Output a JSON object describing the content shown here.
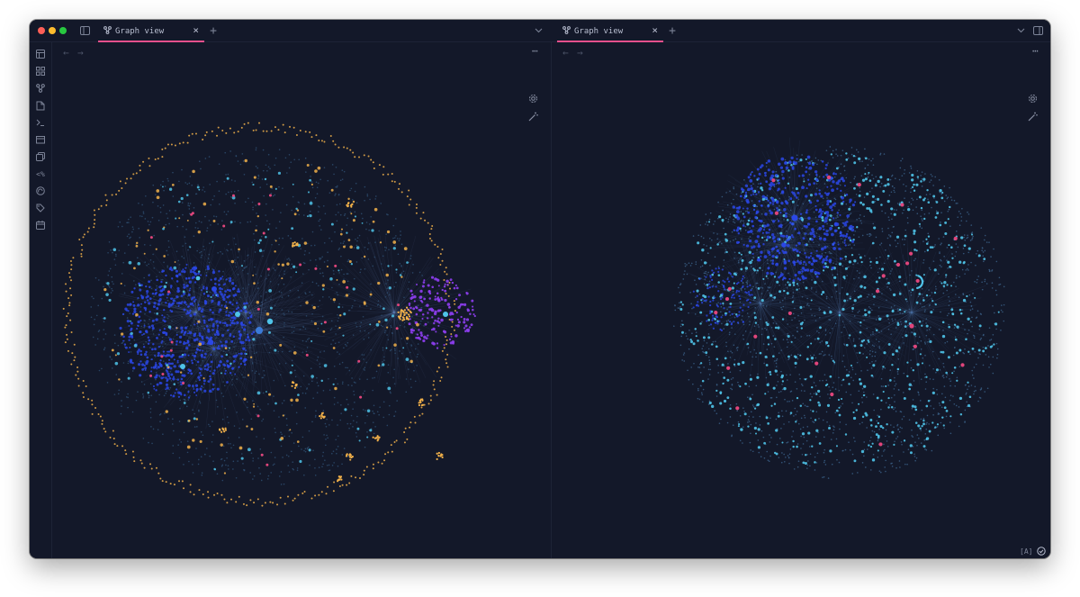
{
  "window": {
    "left_pane": {
      "tab": {
        "label": "Graph view",
        "active": true
      },
      "new_tab_symbol": "+",
      "close_symbol": "×",
      "tab_list_icon": "chevron-down-icon",
      "nav": {
        "back": "←",
        "forward": "→"
      },
      "more_options": "⋯",
      "graph_controls": [
        "gear-icon",
        "magic-wand-icon"
      ]
    },
    "right_pane": {
      "tab": {
        "label": "Graph view",
        "active": true
      },
      "new_tab_symbol": "+",
      "close_symbol": "×",
      "tab_list_icon": "chevron-down-icon",
      "nav": {
        "back": "←",
        "forward": "→"
      },
      "more_options": "⋯",
      "graph_controls": [
        "gear-icon",
        "magic-wand-icon"
      ]
    },
    "sidebar_icons": [
      "layout-icon",
      "grid-icon",
      "graph-icon",
      "file-icon",
      "terminal-icon",
      "folder-icon",
      "copy-icon",
      "percent-icon",
      "audio-icon",
      "tag-icon",
      "calendar-icon"
    ],
    "sidebar_percent_glyph": "<%",
    "status_bar": {
      "badge": "[A]",
      "sync_icon": "check-circle-icon"
    },
    "colors": {
      "background": "#131829",
      "accent": "#e8508c",
      "node_blue": "#2a47e6",
      "node_cyan": "#4fc3e8",
      "node_orange": "#f2b14a",
      "node_purple": "#8e3ef0",
      "node_pink": "#e0457b",
      "node_dim": "#2c4a6b"
    }
  }
}
